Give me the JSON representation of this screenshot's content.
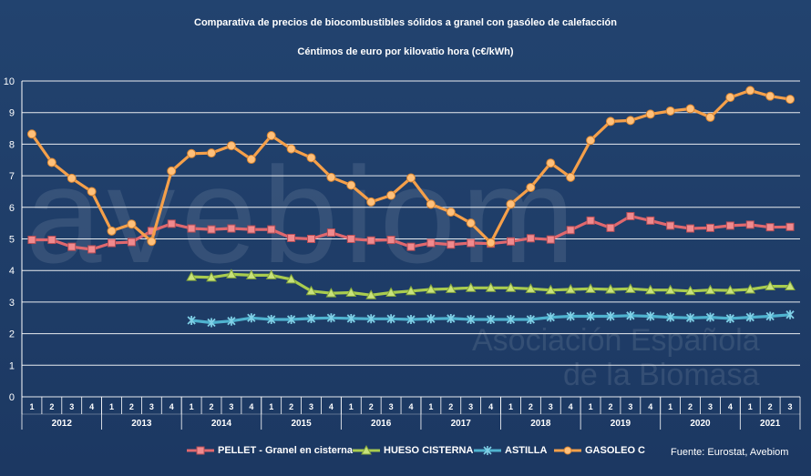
{
  "title": "Comparativa de precios de biocombustibles sólidos a granel con gasóleo de calefacción",
  "subtitle": "Céntimos de euro por kilovatio hora (c€/kWh)",
  "source": "Fuente: Eurostat, Avebiom",
  "watermark": {
    "logo": "avebiom",
    "line1": "Asociación Española",
    "line2": "de la Biomasa"
  },
  "colors": {
    "background": "#1e3a66",
    "grid": "#ffffff",
    "pellet": "#e0686e",
    "hueso": "#a9cc4f",
    "astilla": "#4fb3cf",
    "gasoleo": "#f5a04a"
  },
  "chart_data": {
    "type": "line",
    "title": "Comparativa de precios de biocombustibles sólidos a granel con gasóleo de calefacción",
    "subtitle": "Céntimos de euro por kilovatio hora (c€/kWh)",
    "ylim": [
      0,
      10
    ],
    "yticks": [
      0,
      1,
      2,
      3,
      4,
      5,
      6,
      7,
      8,
      9,
      10
    ],
    "grid": true,
    "legend_position": "bottom",
    "quarters": [
      "1",
      "2",
      "3",
      "4",
      "1",
      "2",
      "3",
      "4",
      "1",
      "2",
      "3",
      "4",
      "1",
      "2",
      "3",
      "4",
      "1",
      "2",
      "3",
      "4",
      "1",
      "2",
      "3",
      "4",
      "1",
      "2",
      "3",
      "4",
      "1",
      "2",
      "3",
      "4",
      "1",
      "2",
      "3",
      "4",
      "1",
      "2",
      "3"
    ],
    "years": [
      {
        "label": "2012",
        "quarters": 4
      },
      {
        "label": "2013",
        "quarters": 4
      },
      {
        "label": "2014",
        "quarters": 4
      },
      {
        "label": "2015",
        "quarters": 4
      },
      {
        "label": "2016",
        "quarters": 4
      },
      {
        "label": "2017",
        "quarters": 4
      },
      {
        "label": "2018",
        "quarters": 4
      },
      {
        "label": "2019",
        "quarters": 4
      },
      {
        "label": "2020",
        "quarters": 4
      },
      {
        "label": "2021",
        "quarters": 3
      }
    ],
    "series": [
      {
        "name": "PELLET - Granel en cisterna",
        "color": "#e0686e",
        "marker": "square",
        "values": [
          4.97,
          4.97,
          4.75,
          4.67,
          4.87,
          4.9,
          5.25,
          5.48,
          5.33,
          5.3,
          5.33,
          5.3,
          5.3,
          5.03,
          5.0,
          5.2,
          5.0,
          4.95,
          4.97,
          4.75,
          4.87,
          4.82,
          4.87,
          4.85,
          4.92,
          5.02,
          4.98,
          5.28,
          5.58,
          5.35,
          5.72,
          5.58,
          5.42,
          5.33,
          5.35,
          5.42,
          5.45,
          5.37,
          5.38
        ]
      },
      {
        "name": "HUESO CISTERNA",
        "color": "#a9cc4f",
        "marker": "triangle",
        "values": [
          null,
          null,
          null,
          null,
          null,
          null,
          null,
          null,
          3.8,
          3.78,
          3.88,
          3.85,
          3.85,
          3.72,
          3.35,
          3.28,
          3.3,
          3.22,
          3.3,
          3.35,
          3.4,
          3.42,
          3.45,
          3.45,
          3.45,
          3.42,
          3.38,
          3.4,
          3.42,
          3.4,
          3.42,
          3.38,
          3.38,
          3.35,
          3.38,
          3.37,
          3.4,
          3.5,
          3.5
        ]
      },
      {
        "name": "ASTILLA",
        "color": "#4fb3cf",
        "marker": "star",
        "values": [
          null,
          null,
          null,
          null,
          null,
          null,
          null,
          null,
          2.42,
          2.35,
          2.4,
          2.5,
          2.45,
          2.45,
          2.48,
          2.5,
          2.48,
          2.47,
          2.47,
          2.45,
          2.47,
          2.48,
          2.45,
          2.45,
          2.45,
          2.45,
          2.52,
          2.55,
          2.55,
          2.55,
          2.57,
          2.55,
          2.52,
          2.5,
          2.52,
          2.48,
          2.52,
          2.55,
          2.6
        ]
      },
      {
        "name": "GASOLEO C",
        "color": "#f5a04a",
        "marker": "circle",
        "values": [
          8.32,
          7.42,
          6.92,
          6.5,
          5.25,
          5.47,
          4.92,
          7.15,
          7.7,
          7.72,
          7.95,
          7.52,
          8.27,
          7.85,
          7.57,
          6.95,
          6.7,
          6.17,
          6.38,
          6.93,
          6.1,
          5.85,
          5.5,
          4.88,
          6.1,
          6.63,
          7.4,
          6.95,
          8.12,
          8.72,
          8.75,
          8.95,
          9.05,
          9.12,
          8.85,
          9.48,
          9.7,
          9.52,
          9.42
        ]
      }
    ]
  }
}
